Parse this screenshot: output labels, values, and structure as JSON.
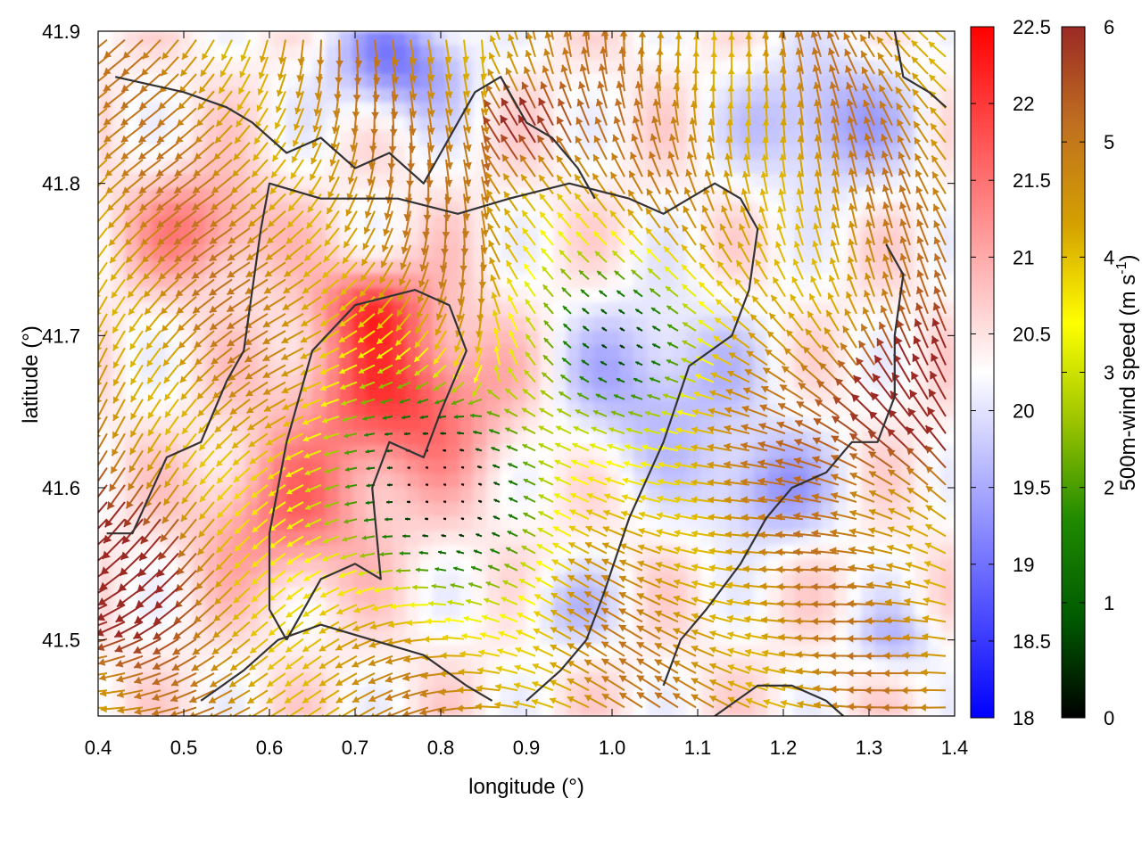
{
  "chart_data": {
    "type": "heatmap",
    "title": "",
    "xlabel": "longitude (°)",
    "ylabel": "latitude (°)",
    "xlim": [
      0.4,
      1.4
    ],
    "ylim": [
      41.45,
      41.9
    ],
    "x_ticks": [
      "0.4",
      "0.5",
      "0.6",
      "0.7",
      "0.8",
      "0.9",
      "1.0",
      "1.1",
      "1.2",
      "1.3",
      "1.4"
    ],
    "y_ticks": [
      "41.5",
      "41.6",
      "41.7",
      "41.8",
      "41.9"
    ],
    "grid": false,
    "colorbars": [
      {
        "name": "temperature",
        "label": "",
        "range": [
          18,
          22.5
        ],
        "ticks": [
          "18",
          "18.5",
          "19",
          "19.5",
          "20",
          "20.5",
          "21",
          "21.5",
          "22",
          "22.5"
        ],
        "colors": [
          "#0000ff",
          "#ffffff",
          "#ff0000"
        ]
      },
      {
        "name": "wind-speed",
        "label": "500m-wind speed (m s",
        "label_sup": "-1",
        "label_end": ")",
        "range": [
          0,
          6
        ],
        "ticks": [
          "0",
          "1",
          "2",
          "3",
          "4",
          "5",
          "6"
        ],
        "colors": [
          "#000000",
          "#005a00",
          "#1f8a00",
          "#9cc400",
          "#ffff00",
          "#d4a000",
          "#c07020",
          "#9b2a25"
        ]
      }
    ],
    "field": {
      "base_temperature": 20.4,
      "temperature_features": [
        {
          "lon": 0.75,
          "lat": 41.66,
          "amplitude": 1.5,
          "spread": 0.12
        },
        {
          "lon": 0.62,
          "lat": 41.58,
          "amplitude": 1.0,
          "spread": 0.1
        },
        {
          "lon": 0.52,
          "lat": 41.77,
          "amplitude": 1.0,
          "spread": 0.08
        },
        {
          "lon": 0.72,
          "lat": 41.72,
          "amplitude": 1.2,
          "spread": 0.06
        },
        {
          "lon": 1.05,
          "lat": 41.67,
          "amplitude": -0.9,
          "spread": 0.12
        },
        {
          "lon": 1.18,
          "lat": 41.6,
          "amplitude": -1.0,
          "spread": 0.08
        },
        {
          "lon": 0.75,
          "lat": 41.88,
          "amplitude": -1.3,
          "spread": 0.08
        },
        {
          "lon": 1.25,
          "lat": 41.84,
          "amplitude": -1.0,
          "spread": 0.1
        },
        {
          "lon": 0.95,
          "lat": 41.52,
          "amplitude": -0.6,
          "spread": 0.06
        },
        {
          "lon": 1.33,
          "lat": 41.5,
          "amplitude": -0.7,
          "spread": 0.05
        }
      ],
      "wind_speed_features": [
        {
          "lon": 0.8,
          "lat": 41.6,
          "amplitude": -4.5,
          "spread": 0.16
        },
        {
          "lon": 1.02,
          "lat": 41.7,
          "amplitude": -3.5,
          "spread": 0.12
        },
        {
          "lon": 0.9,
          "lat": 41.83,
          "amplitude": 2.0,
          "spread": 0.06
        },
        {
          "lon": 0.42,
          "lat": 41.55,
          "amplitude": 2.5,
          "spread": 0.1
        },
        {
          "lon": 1.36,
          "lat": 41.65,
          "amplitude": 2.5,
          "spread": 0.1
        }
      ],
      "base_wind_speed": 4.6,
      "wind_direction": "westward with cyclonic curl around the basin center",
      "arrow_grid": {
        "nx": 48,
        "ny": 40
      }
    },
    "contours": [
      {
        "name": "coastline-north",
        "points": [
          [
            0.42,
            41.87
          ],
          [
            0.5,
            41.86
          ],
          [
            0.55,
            41.85
          ],
          [
            0.58,
            41.84
          ],
          [
            0.62,
            41.82
          ],
          [
            0.66,
            41.83
          ],
          [
            0.7,
            41.81
          ],
          [
            0.74,
            41.82
          ],
          [
            0.78,
            41.8
          ],
          [
            0.81,
            41.83
          ],
          [
            0.84,
            41.86
          ],
          [
            0.87,
            41.87
          ],
          [
            0.9,
            41.84
          ],
          [
            0.93,
            41.83
          ],
          [
            0.96,
            41.81
          ],
          [
            0.98,
            41.79
          ]
        ]
      },
      {
        "name": "ridge-west",
        "points": [
          [
            0.41,
            41.57
          ],
          [
            0.44,
            41.57
          ],
          [
            0.48,
            41.62
          ],
          [
            0.52,
            41.63
          ],
          [
            0.55,
            41.67
          ],
          [
            0.57,
            41.69
          ],
          [
            0.59,
            41.77
          ],
          [
            0.6,
            41.8
          ],
          [
            0.66,
            41.79
          ],
          [
            0.75,
            41.79
          ],
          [
            0.82,
            41.78
          ],
          [
            0.88,
            41.79
          ],
          [
            0.95,
            41.8
          ],
          [
            1.02,
            41.79
          ],
          [
            1.06,
            41.78
          ],
          [
            1.12,
            41.8
          ],
          [
            1.15,
            41.79
          ],
          [
            1.17,
            41.77
          ],
          [
            1.16,
            41.73
          ],
          [
            1.14,
            41.7
          ],
          [
            1.09,
            41.68
          ],
          [
            1.06,
            41.63
          ],
          [
            1.02,
            41.58
          ],
          [
            0.99,
            41.53
          ],
          [
            0.97,
            41.5
          ],
          [
            0.94,
            41.48
          ],
          [
            0.9,
            41.46
          ]
        ]
      },
      {
        "name": "valley-inner",
        "points": [
          [
            0.62,
            41.5
          ],
          [
            0.66,
            41.54
          ],
          [
            0.7,
            41.55
          ],
          [
            0.73,
            41.54
          ],
          [
            0.72,
            41.6
          ],
          [
            0.74,
            41.63
          ],
          [
            0.78,
            41.62
          ],
          [
            0.8,
            41.65
          ],
          [
            0.83,
            41.69
          ],
          [
            0.81,
            41.72
          ],
          [
            0.77,
            41.73
          ],
          [
            0.7,
            41.72
          ],
          [
            0.65,
            41.69
          ],
          [
            0.62,
            41.63
          ],
          [
            0.6,
            41.57
          ],
          [
            0.6,
            41.52
          ],
          [
            0.62,
            41.5
          ]
        ]
      },
      {
        "name": "river-south",
        "points": [
          [
            0.52,
            41.46
          ],
          [
            0.57,
            41.48
          ],
          [
            0.61,
            41.5
          ],
          [
            0.66,
            41.51
          ],
          [
            0.72,
            41.5
          ],
          [
            0.78,
            41.49
          ],
          [
            0.83,
            41.47
          ],
          [
            0.86,
            41.46
          ]
        ]
      },
      {
        "name": "ridge-east",
        "points": [
          [
            1.32,
            41.76
          ],
          [
            1.34,
            41.74
          ],
          [
            1.33,
            41.7
          ],
          [
            1.33,
            41.66
          ],
          [
            1.31,
            41.63
          ],
          [
            1.28,
            41.63
          ],
          [
            1.25,
            41.61
          ],
          [
            1.21,
            41.6
          ],
          [
            1.18,
            41.58
          ],
          [
            1.15,
            41.55
          ],
          [
            1.11,
            41.52
          ],
          [
            1.08,
            41.5
          ],
          [
            1.06,
            41.47
          ]
        ]
      },
      {
        "name": "coast-southeast",
        "points": [
          [
            1.12,
            41.45
          ],
          [
            1.17,
            41.47
          ],
          [
            1.21,
            41.47
          ],
          [
            1.25,
            41.46
          ],
          [
            1.27,
            41.45
          ]
        ]
      },
      {
        "name": "northeast-bay",
        "points": [
          [
            1.33,
            41.9
          ],
          [
            1.34,
            41.87
          ],
          [
            1.37,
            41.86
          ],
          [
            1.39,
            41.85
          ]
        ]
      }
    ]
  }
}
